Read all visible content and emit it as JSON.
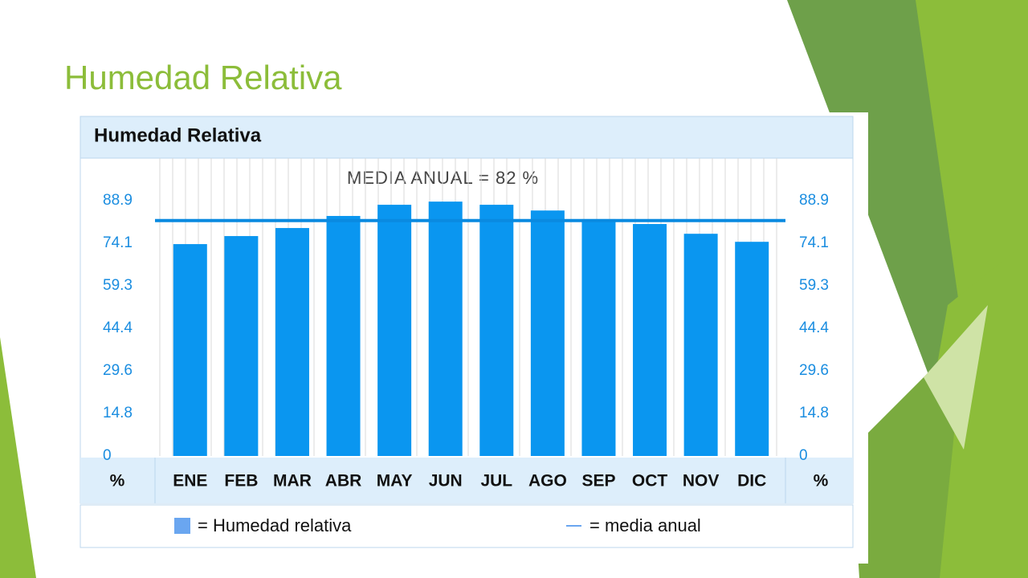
{
  "slide_title": "Humedad Relativa",
  "chart_data": {
    "type": "bar",
    "title": "Humedad Relativa",
    "annotation": "MEDIA ANUAL = 82 %",
    "categories": [
      "ENE",
      "FEB",
      "MAR",
      "ABR",
      "MAY",
      "JUN",
      "JUL",
      "AGO",
      "SEP",
      "OCT",
      "NOV",
      "DIC"
    ],
    "series": [
      {
        "name": "= Humedad relativa",
        "color": "#0a96f0",
        "values": [
          73.8,
          76.6,
          79.4,
          83.6,
          87.5,
          88.6,
          87.5,
          85.5,
          82.5,
          80.8,
          77.4,
          74.6
        ]
      }
    ],
    "mean_line": {
      "name": "= media anual",
      "value": 82,
      "color": "#0a8ae0"
    },
    "ylim": [
      0,
      102.9
    ],
    "yticks": [
      0,
      14.8,
      29.6,
      44.4,
      59.3,
      74.1,
      88.9
    ],
    "y_unit": "%"
  }
}
